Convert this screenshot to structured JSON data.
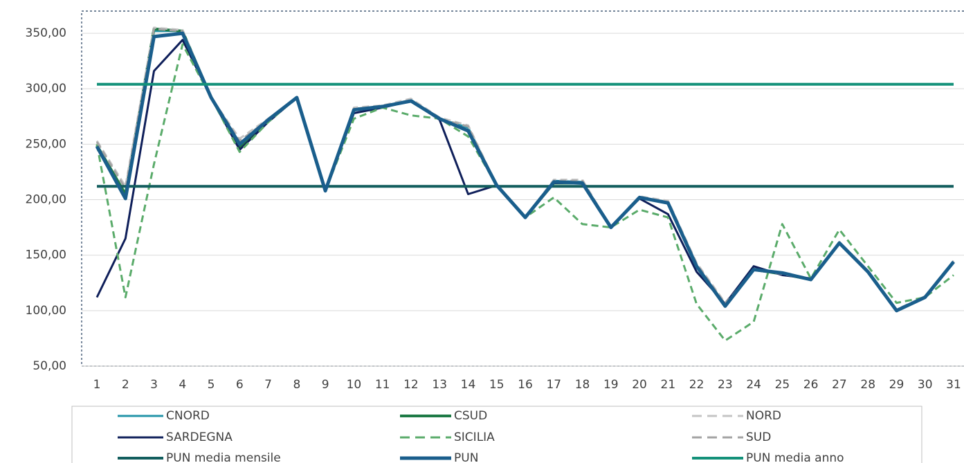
{
  "chart_data": {
    "type": "line",
    "categories": [
      "1",
      "2",
      "3",
      "4",
      "5",
      "6",
      "7",
      "8",
      "9",
      "10",
      "11",
      "12",
      "13",
      "14",
      "15",
      "16",
      "17",
      "18",
      "19",
      "20",
      "21",
      "22",
      "23",
      "24",
      "25",
      "26",
      "27",
      "28",
      "29",
      "30",
      "31"
    ],
    "ylim": [
      50,
      370
    ],
    "yticks": [
      {
        "value": 50,
        "label": "50,00"
      },
      {
        "value": 100,
        "label": "100,00"
      },
      {
        "value": 150,
        "label": "150,00"
      },
      {
        "value": 200,
        "label": "200,00"
      },
      {
        "value": 250,
        "label": "250,00"
      },
      {
        "value": 300,
        "label": "300,00"
      },
      {
        "value": 350,
        "label": "350,00"
      }
    ],
    "grid": true,
    "legend": "bottom",
    "series": [
      {
        "name": "CNORD",
        "color": "#2394a8",
        "dash": false,
        "width": 3,
        "values": [
          249,
          203,
          352,
          352,
          292,
          251,
          272,
          292,
          208,
          282,
          284,
          290,
          273,
          265,
          213,
          184,
          217,
          216,
          175,
          202,
          198,
          141,
          105,
          137,
          133,
          128,
          161,
          135,
          100,
          112,
          144
        ]
      },
      {
        "name": "CSUD",
        "color": "#1d7a45",
        "dash": false,
        "width": 4,
        "values": [
          249,
          205,
          354,
          352,
          292,
          247,
          271,
          292,
          208,
          281,
          284,
          289,
          273,
          262,
          213,
          184,
          215,
          215,
          175,
          202,
          197,
          140,
          105,
          137,
          133,
          128,
          161,
          135,
          100,
          112,
          144
        ]
      },
      {
        "name": "NORD",
        "color": "#c4c4c4",
        "dash": true,
        "width": 3,
        "values": [
          253,
          212,
          355,
          353,
          292,
          255,
          273,
          292,
          208,
          283,
          285,
          291,
          274,
          267,
          213,
          184,
          218,
          218,
          175,
          203,
          199,
          143,
          107,
          138,
          134,
          129,
          162,
          136,
          101,
          113,
          145
        ]
      },
      {
        "name": "SARDEGNA",
        "color": "#0f1f5a",
        "dash": false,
        "width": 3,
        "values": [
          112,
          165,
          316,
          344,
          292,
          245,
          270,
          292,
          208,
          278,
          283,
          289,
          272,
          205,
          213,
          184,
          215,
          215,
          175,
          201,
          187,
          135,
          106,
          140,
          132,
          129,
          161,
          135,
          100,
          112,
          144
        ]
      },
      {
        "name": "SICILIA",
        "color": "#5aab6a",
        "dash": true,
        "width": 3,
        "values": [
          250,
          112,
          232,
          340,
          292,
          243,
          270,
          292,
          208,
          273,
          283,
          276,
          273,
          257,
          213,
          184,
          202,
          178,
          175,
          191,
          184,
          106,
          73,
          90,
          178,
          129,
          173,
          140,
          107,
          112,
          132
        ]
      },
      {
        "name": "SUD",
        "color": "#a3a3a3",
        "dash": true,
        "width": 3,
        "values": [
          252,
          210,
          354,
          352,
          292,
          253,
          272,
          292,
          208,
          282,
          284,
          290,
          273,
          266,
          213,
          184,
          217,
          217,
          175,
          202,
          198,
          142,
          106,
          137,
          133,
          128,
          161,
          135,
          100,
          112,
          144
        ]
      },
      {
        "name": "PUN media mensile",
        "color": "#135e5e",
        "dash": false,
        "width": 4,
        "values": [
          212,
          212,
          212,
          212,
          212,
          212,
          212,
          212,
          212,
          212,
          212,
          212,
          212,
          212,
          212,
          212,
          212,
          212,
          212,
          212,
          212,
          212,
          212,
          212,
          212,
          212,
          212,
          212,
          212,
          212,
          212
        ]
      },
      {
        "name": "PUN",
        "color": "#1a5e8c",
        "dash": false,
        "width": 5,
        "values": [
          248,
          201,
          347,
          350,
          292,
          250,
          272,
          292,
          208,
          281,
          284,
          289,
          273,
          262,
          213,
          184,
          216,
          215,
          175,
          202,
          197,
          140,
          104,
          137,
          134,
          128,
          161,
          135,
          100,
          112,
          144
        ]
      },
      {
        "name": "PUN media anno",
        "color": "#14917a",
        "dash": false,
        "width": 4,
        "values": [
          304,
          304,
          304,
          304,
          304,
          304,
          304,
          304,
          304,
          304,
          304,
          304,
          304,
          304,
          304,
          304,
          304,
          304,
          304,
          304,
          304,
          304,
          304,
          304,
          304,
          304,
          304,
          304,
          304,
          304,
          304
        ]
      }
    ]
  }
}
